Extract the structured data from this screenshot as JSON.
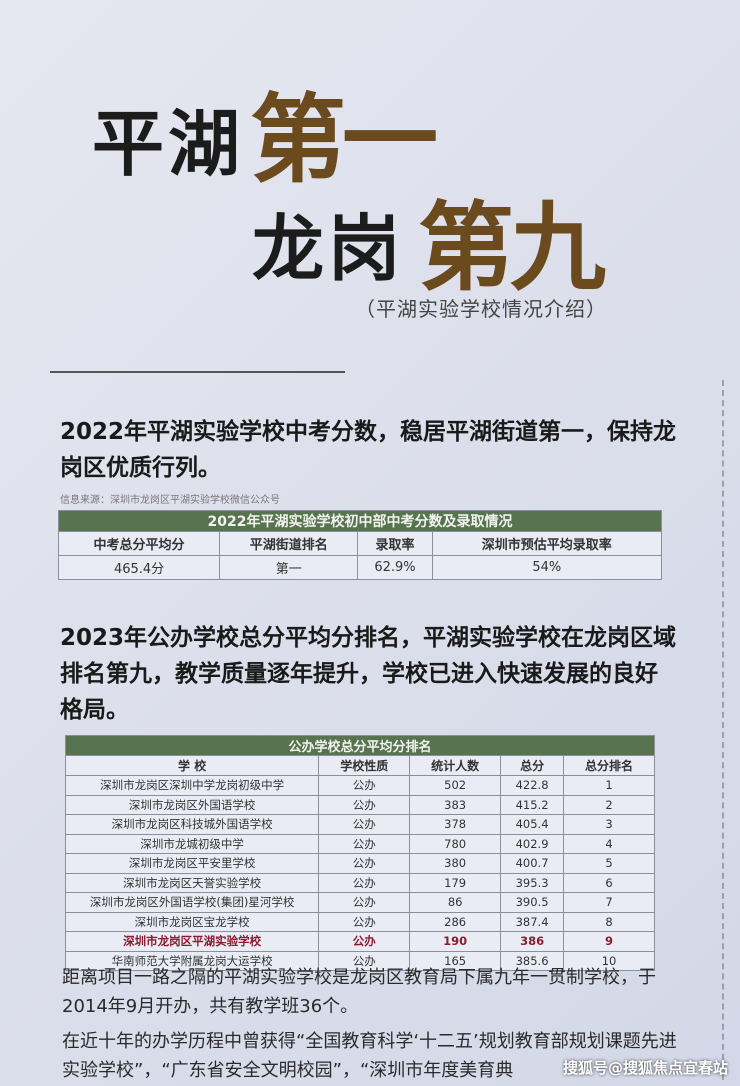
{
  "title": {
    "line1_a": "平湖",
    "line1_b": "第一",
    "line2_a": "龙岗",
    "line2_b": "第九",
    "subtitle": "（平湖实验学校情况介绍）"
  },
  "section1": {
    "heading": "2022年平湖实验学校中考分数，稳居平湖街道第一，保持龙岗区优质行列。",
    "source": "信息来源：深圳市龙岗区平湖实验学校微信公众号",
    "table": {
      "caption": "2022年平湖实验学校初中部中考分数及录取情况",
      "headers": [
        "中考总分平均分",
        "平湖街道排名",
        "录取率",
        "深圳市预估平均录取率"
      ],
      "row": [
        "465.4分",
        "第一",
        "62.9%",
        "54%"
      ]
    }
  },
  "section2": {
    "heading": "2023年公办学校总分平均分排名，平湖实验学校在龙岗区域排名第九，教学质量逐年提升，学校已进入快速发展的良好格局。",
    "table": {
      "caption": "公办学校总分平均分排名",
      "headers": [
        "学 校",
        "学校性质",
        "统计人数",
        "总分",
        "总分排名"
      ],
      "rows": [
        [
          "深圳市龙岗区深圳中学龙岗初级中学",
          "公办",
          "502",
          "422.8",
          "1"
        ],
        [
          "深圳市龙岗区外国语学校",
          "公办",
          "383",
          "415.2",
          "2"
        ],
        [
          "深圳市龙岗区科技城外国语学校",
          "公办",
          "378",
          "405.4",
          "3"
        ],
        [
          "深圳市龙城初级中学",
          "公办",
          "780",
          "402.9",
          "4"
        ],
        [
          "深圳市龙岗区平安里学校",
          "公办",
          "380",
          "400.7",
          "5"
        ],
        [
          "深圳市龙岗区天誉实验学校",
          "公办",
          "179",
          "395.3",
          "6"
        ],
        [
          "深圳市龙岗区外国语学校(集团)星河学校",
          "公办",
          "86",
          "390.5",
          "7"
        ],
        [
          "深圳市龙岗区宝龙学校",
          "公办",
          "286",
          "387.4",
          "8"
        ],
        [
          "深圳市龙岗区平湖实验学校",
          "公办",
          "190",
          "386",
          "9"
        ],
        [
          "华南师范大学附属龙岗大运学校",
          "公办",
          "165",
          "385.6",
          "10"
        ]
      ],
      "highlight_row": 8,
      "highlight_color": "#8a1c2e"
    }
  },
  "paragraphs": [
    "距离项目一路之隔的平湖实验学校是龙岗区教育局下属九年一贯制学校，于2014年9月开办，共有教学班36个。",
    "在近十年的办学历程中曾获得“全国教育科学‘十二五’规划教育部规划课题先进实验学校”，“广东省安全文明校园”，“深圳市年度美育典"
  ],
  "watermark": "搜狐号@搜狐焦点宜春站",
  "colors": {
    "title_accent": "#6b4a1e",
    "table_header": "#57734f"
  }
}
